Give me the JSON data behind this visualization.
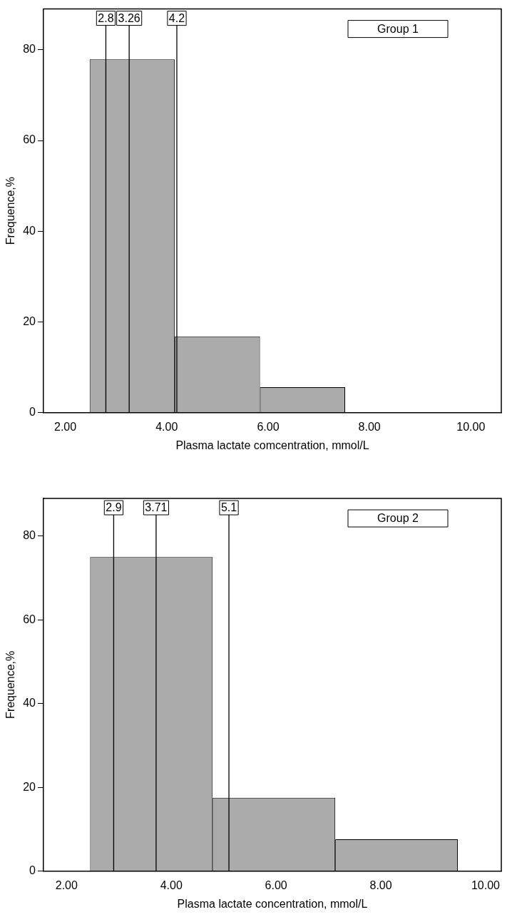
{
  "chart_data": [
    {
      "type": "histogram",
      "xlabel": "Plasma lactate comcentration, mmol/L",
      "ylabel": "Frequence,%",
      "bins": [
        2.48,
        4.16,
        5.84,
        7.52
      ],
      "values": [
        77.9,
        16.8,
        5.6
      ],
      "color": "#ababab",
      "legend_title": "Group 1",
      "xlim": [
        1.57,
        10.6
      ],
      "xticks": [
        {
          "value": 2,
          "label": "2.00"
        },
        {
          "value": 4,
          "label": "4.00"
        },
        {
          "value": 6,
          "label": "6.00"
        },
        {
          "value": 8,
          "label": "8.00"
        },
        {
          "value": 10,
          "label": "10.00"
        }
      ],
      "ylim": [
        0,
        89
      ],
      "yticks": [
        0,
        20,
        40,
        60,
        80
      ],
      "grid": false,
      "ref_lines": [
        {
          "axis": "x",
          "value": 2.8,
          "label": "2.8"
        },
        {
          "axis": "x",
          "value": 3.26,
          "label": "3.26"
        },
        {
          "axis": "x",
          "value": 4.2,
          "label": "4.2"
        }
      ]
    },
    {
      "type": "histogram",
      "xlabel": "Plasma lactate concentration, mmol/L",
      "ylabel": "Frequence,%",
      "bins": [
        2.45,
        4.79,
        7.13,
        9.47
      ],
      "values": [
        75,
        17.5,
        7.6
      ],
      "color": "#ababab",
      "legend_title": "Group 2",
      "xlim": [
        1.56,
        10.3
      ],
      "xticks": [
        {
          "value": 2,
          "label": "2.00"
        },
        {
          "value": 4,
          "label": "4.00"
        },
        {
          "value": 6,
          "label": "6.00"
        },
        {
          "value": 8,
          "label": "8.00"
        },
        {
          "value": 10,
          "label": "10.00"
        }
      ],
      "ylim": [
        0,
        89
      ],
      "yticks": [
        0,
        20,
        40,
        60,
        80
      ],
      "grid": false,
      "ref_lines": [
        {
          "axis": "x",
          "value": 2.9,
          "label": "2.9"
        },
        {
          "axis": "x",
          "value": 3.71,
          "label": "3.71"
        },
        {
          "axis": "x",
          "value": 5.1,
          "label": "5.1"
        }
      ]
    }
  ]
}
